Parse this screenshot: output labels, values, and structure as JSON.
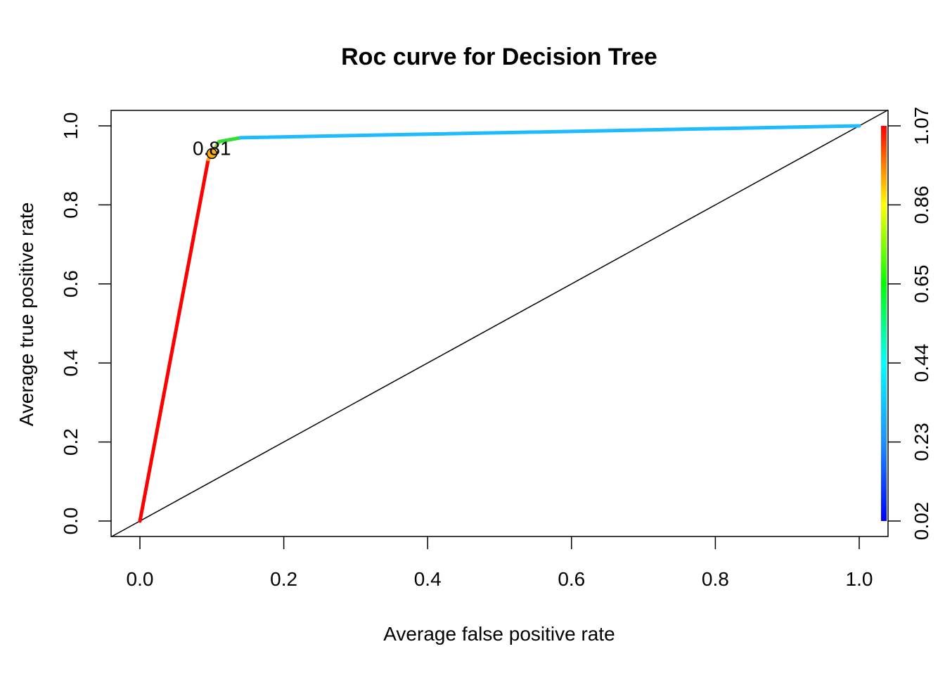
{
  "chart_data": {
    "type": "line",
    "title": "Roc curve for Decision Tree",
    "xlabel": "Average false positive rate",
    "ylabel": "Average true positive rate",
    "xlim": [
      -0.04,
      1.04
    ],
    "ylim": [
      -0.04,
      1.04
    ],
    "x_ticks": [
      "0.0",
      "0.2",
      "0.4",
      "0.6",
      "0.8",
      "1.0"
    ],
    "y_ticks": [
      "0.0",
      "0.2",
      "0.4",
      "0.6",
      "0.8",
      "1.0"
    ],
    "x_tick_values": [
      0,
      0.2,
      0.4,
      0.6,
      0.8,
      1.0
    ],
    "y_tick_values": [
      0,
      0.2,
      0.4,
      0.6,
      0.8,
      1.0
    ],
    "grid": false,
    "curve": {
      "segments": [
        {
          "x": [
            0.0,
            0.095
          ],
          "y": [
            0.0,
            0.915
          ],
          "color": "#ff0000"
        },
        {
          "x": [
            0.095,
            0.1
          ],
          "y": [
            0.915,
            0.93
          ],
          "color": "#ffa500"
        },
        {
          "x": [
            0.1,
            0.11
          ],
          "y": [
            0.93,
            0.96
          ],
          "color": "#9acd32"
        },
        {
          "x": [
            0.11,
            0.14
          ],
          "y": [
            0.96,
            0.97
          ],
          "color": "#33dd33"
        },
        {
          "x": [
            0.14,
            1.0
          ],
          "y": [
            0.97,
            1.0
          ],
          "color": "#1ebcff"
        }
      ]
    },
    "diagonal": {
      "x": [
        -0.04,
        1.04
      ],
      "y": [
        -0.04,
        1.04
      ],
      "color": "#000000"
    },
    "cutoff_annotation": {
      "label": "0.81",
      "x": 0.1,
      "y": 0.93,
      "marker_color": "#ffb000"
    },
    "colorbar": {
      "tick_labels": [
        "0.02",
        "0.23",
        "0.44",
        "0.65",
        "0.86",
        "1.07"
      ],
      "tick_values": [
        0.02,
        0.23,
        0.44,
        0.65,
        0.86,
        1.07
      ],
      "range": [
        0.02,
        1.07
      ],
      "colors": [
        "#0000ff",
        "#1e90ff",
        "#00ffff",
        "#00ff00",
        "#ffff00",
        "#ff0000"
      ]
    }
  }
}
